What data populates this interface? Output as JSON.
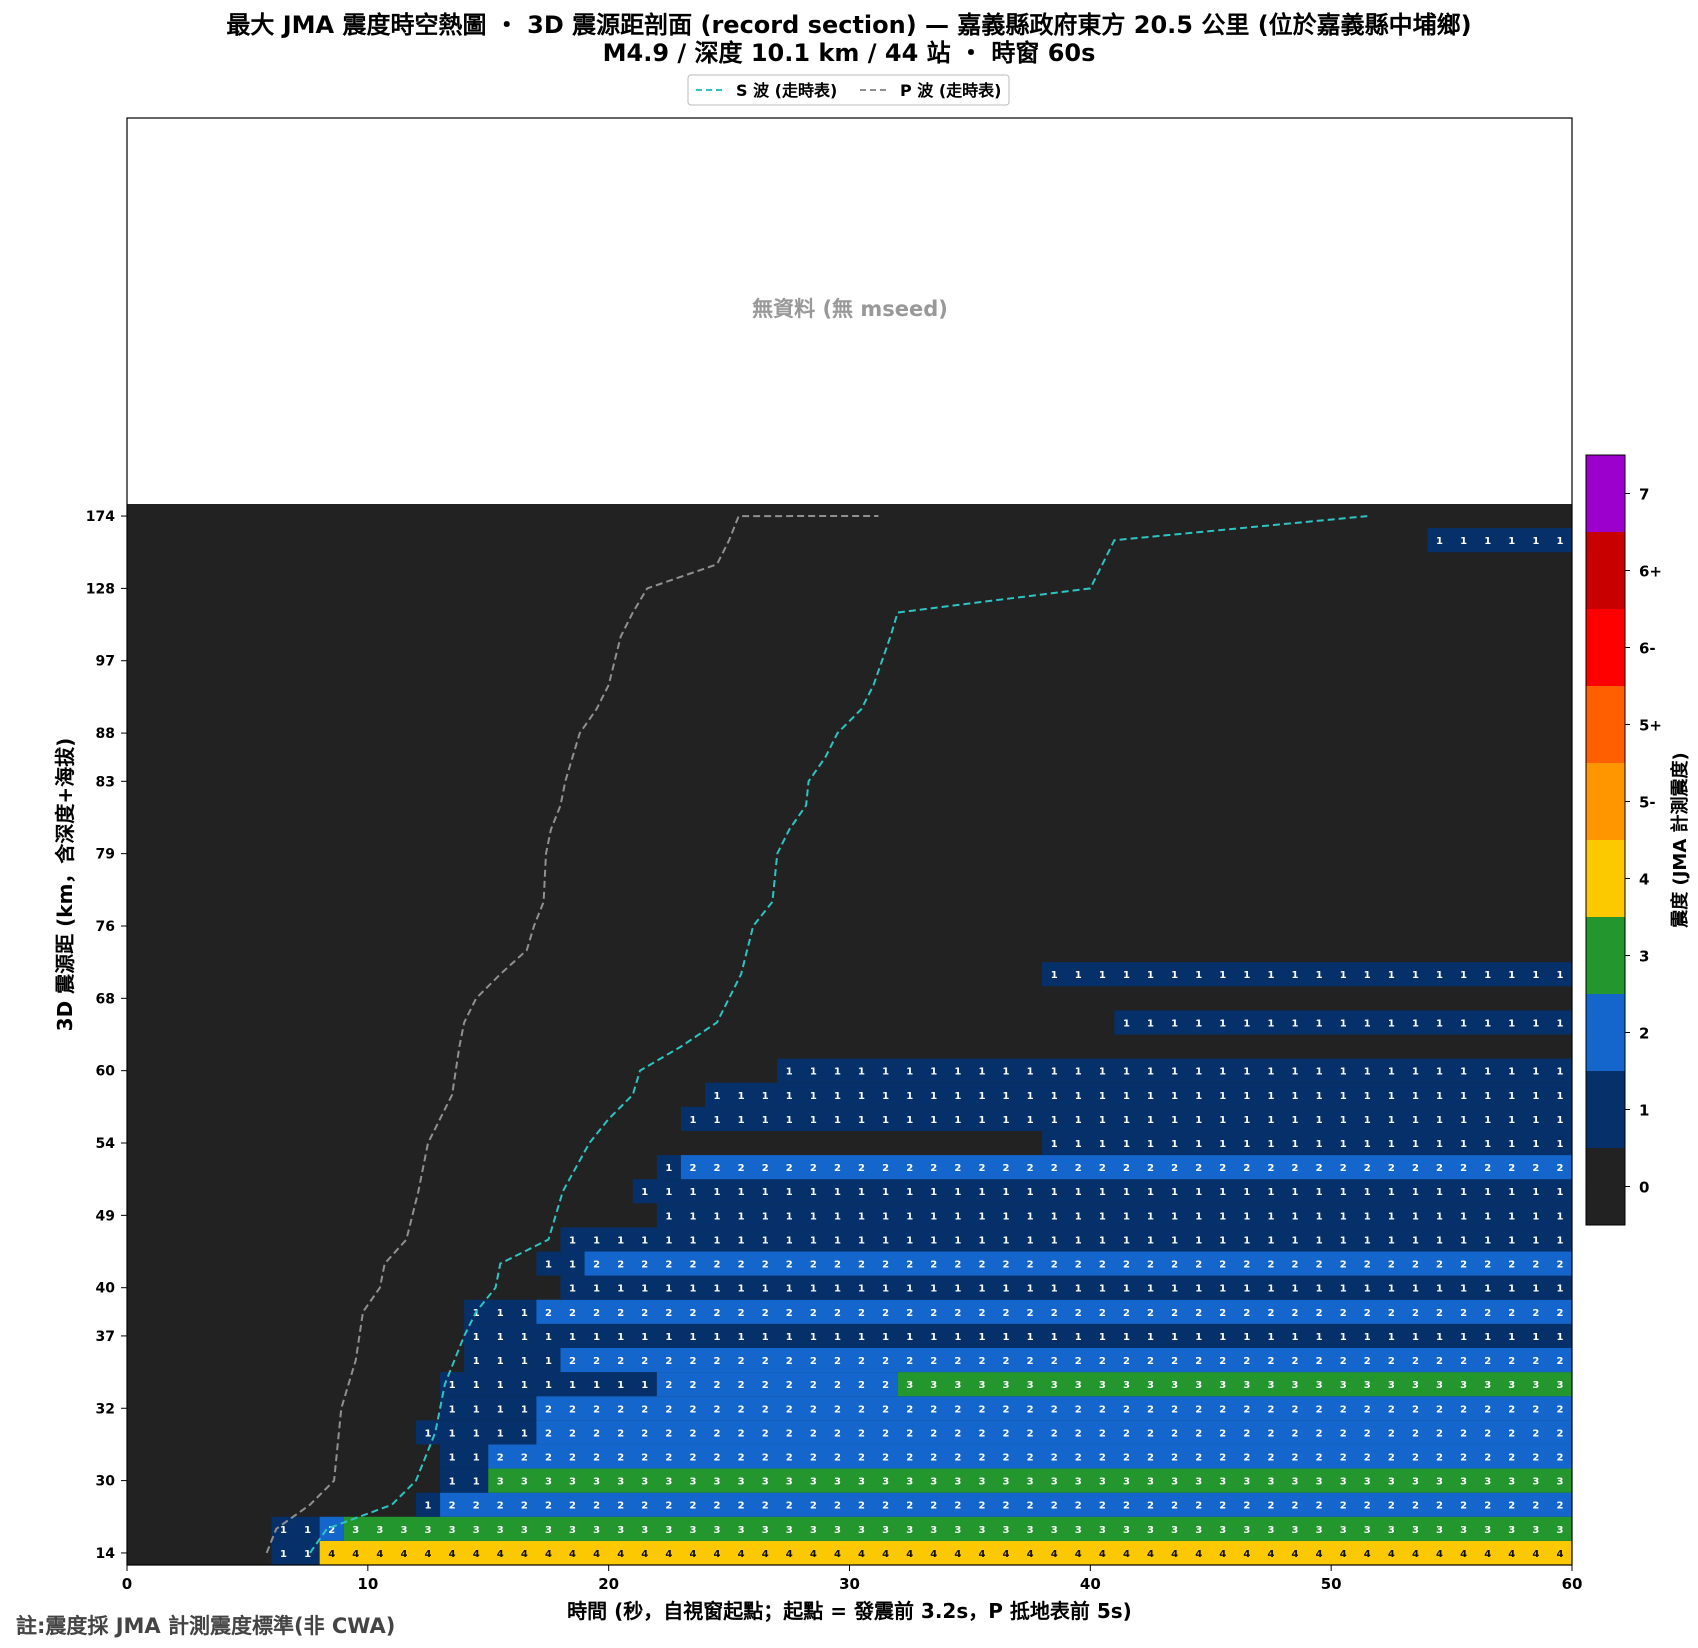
{
  "chart_data": {
    "type": "heatmap",
    "title": "最大 JMA 震度時空熱圖 ・ 3D 震源距剖面 (record section) — 嘉義縣政府東方  20.5  公里 (位於嘉義縣中埔鄉)",
    "subtitle": "M4.9 / 深度 10.1 km / 44 站 ・ 時窗 60s",
    "xlabel": "時間 (秒，自視窗起點；起點 = 發震前 3.2s，P 抵地表前 5s)",
    "ylabel": "3D 震源距 (km，含深度+海拔)",
    "xlim": [
      0,
      60
    ],
    "x_ticks": [
      0,
      10,
      20,
      30,
      40,
      50,
      60
    ],
    "no_data_label": "無資料 (無 mseed)",
    "legend": [
      {
        "label": "S 波 (走時表)",
        "color": "#2ec4c4"
      },
      {
        "label": "P 波 (走時表)",
        "color": "#909090"
      }
    ],
    "legend_position": "top-center",
    "colorbar": {
      "label": "震度 (JMA 計測震度)",
      "levels": [
        "0",
        "1",
        "2",
        "3",
        "4",
        "5-",
        "5+",
        "6-",
        "6+",
        "7"
      ],
      "colors": [
        "#222222",
        "#06306a",
        "#1466cc",
        "#24962e",
        "#fcc800",
        "#ff9600",
        "#ff5f00",
        "#ff0000",
        "#c80000",
        "#9b00cc"
      ]
    },
    "rows": [
      {
        "label": "14",
        "segs": [
          [
            6,
            8,
            1
          ],
          [
            8,
            60,
            4
          ]
        ]
      },
      {
        "label": "",
        "segs": [
          [
            6,
            8,
            1
          ],
          [
            8,
            9,
            2
          ],
          [
            9,
            60,
            3
          ]
        ]
      },
      {
        "label": "",
        "segs": [
          [
            12,
            13,
            1
          ],
          [
            13,
            60,
            2
          ]
        ]
      },
      {
        "label": "30",
        "segs": [
          [
            13,
            15,
            1
          ],
          [
            15,
            60,
            3
          ]
        ]
      },
      {
        "label": "",
        "segs": [
          [
            13,
            15,
            1
          ],
          [
            15,
            60,
            2
          ]
        ]
      },
      {
        "label": "",
        "segs": [
          [
            12,
            17,
            1
          ],
          [
            17,
            60,
            2
          ]
        ]
      },
      {
        "label": "32",
        "segs": [
          [
            13,
            17,
            1
          ],
          [
            17,
            60,
            2
          ]
        ]
      },
      {
        "label": "",
        "segs": [
          [
            13,
            22,
            1
          ],
          [
            22,
            32,
            2
          ],
          [
            32,
            60,
            3
          ]
        ]
      },
      {
        "label": "",
        "segs": [
          [
            14,
            18,
            1
          ],
          [
            18,
            60,
            2
          ]
        ]
      },
      {
        "label": "37",
        "segs": [
          [
            14,
            60,
            1
          ]
        ]
      },
      {
        "label": "",
        "segs": [
          [
            14,
            17,
            1
          ],
          [
            17,
            60,
            2
          ]
        ]
      },
      {
        "label": "40",
        "segs": [
          [
            18,
            60,
            1
          ]
        ]
      },
      {
        "label": "",
        "segs": [
          [
            17,
            19,
            1
          ],
          [
            19,
            60,
            2
          ]
        ]
      },
      {
        "label": "",
        "segs": [
          [
            18,
            60,
            1
          ]
        ]
      },
      {
        "label": "49",
        "segs": [
          [
            22,
            60,
            1
          ]
        ]
      },
      {
        "label": "",
        "segs": [
          [
            21,
            60,
            1
          ]
        ]
      },
      {
        "label": "",
        "segs": [
          [
            22,
            23,
            1
          ],
          [
            23,
            60,
            2
          ]
        ]
      },
      {
        "label": "54",
        "segs": [
          [
            38,
            60,
            1
          ]
        ]
      },
      {
        "label": "",
        "segs": [
          [
            23,
            60,
            1
          ]
        ]
      },
      {
        "label": "",
        "segs": [
          [
            24,
            60,
            1
          ]
        ]
      },
      {
        "label": "60",
        "segs": [
          [
            27,
            60,
            1
          ]
        ]
      },
      {
        "label": "",
        "segs": []
      },
      {
        "label": "",
        "segs": [
          [
            41,
            60,
            1
          ]
        ]
      },
      {
        "label": "68",
        "segs": []
      },
      {
        "label": "",
        "segs": [
          [
            38,
            60,
            1
          ]
        ]
      },
      {
        "label": "",
        "segs": []
      },
      {
        "label": "76",
        "segs": []
      },
      {
        "label": "",
        "segs": []
      },
      {
        "label": "",
        "segs": []
      },
      {
        "label": "79",
        "segs": []
      },
      {
        "label": "",
        "segs": []
      },
      {
        "label": "",
        "segs": []
      },
      {
        "label": "83",
        "segs": []
      },
      {
        "label": "",
        "segs": []
      },
      {
        "label": "88",
        "segs": []
      },
      {
        "label": "",
        "segs": []
      },
      {
        "label": "",
        "segs": []
      },
      {
        "label": "97",
        "segs": []
      },
      {
        "label": "",
        "segs": []
      },
      {
        "label": "",
        "segs": []
      },
      {
        "label": "128",
        "segs": []
      },
      {
        "label": "",
        "segs": []
      },
      {
        "label": "",
        "segs": [
          [
            54,
            60,
            1
          ]
        ]
      },
      {
        "label": "174",
        "segs": []
      }
    ],
    "s_wave": [
      [
        7.6,
        0
      ],
      [
        8.3,
        1
      ],
      [
        11,
        2
      ],
      [
        12,
        3
      ],
      [
        12.8,
        5
      ],
      [
        13.2,
        7
      ],
      [
        14,
        9
      ],
      [
        14.5,
        10
      ],
      [
        15.3,
        11
      ],
      [
        15.5,
        12
      ],
      [
        17.5,
        13
      ],
      [
        18.1,
        15
      ],
      [
        19.2,
        17
      ],
      [
        20,
        18
      ],
      [
        21,
        19
      ],
      [
        21.3,
        20
      ],
      [
        23,
        21
      ],
      [
        24.5,
        22
      ],
      [
        25.5,
        24
      ],
      [
        26,
        26
      ],
      [
        26.8,
        27
      ],
      [
        27,
        29
      ],
      [
        27.5,
        30
      ],
      [
        28.2,
        31
      ],
      [
        28.3,
        32
      ],
      [
        29,
        33
      ],
      [
        29.5,
        34
      ],
      [
        30.5,
        35
      ],
      [
        31,
        36
      ],
      [
        31.7,
        38
      ],
      [
        32,
        39
      ],
      [
        40,
        40
      ],
      [
        40.5,
        41
      ],
      [
        41,
        42
      ],
      [
        51.5,
        43
      ]
    ],
    "p_wave": [
      [
        5.8,
        0
      ],
      [
        6.2,
        1
      ],
      [
        7.6,
        2
      ],
      [
        8.6,
        3
      ],
      [
        8.9,
        6
      ],
      [
        9.5,
        8
      ],
      [
        9.8,
        10
      ],
      [
        10.5,
        11
      ],
      [
        10.7,
        12
      ],
      [
        11.6,
        13
      ],
      [
        12.1,
        15
      ],
      [
        12.5,
        17
      ],
      [
        13.5,
        19
      ],
      [
        13.8,
        21
      ],
      [
        14,
        22
      ],
      [
        14.5,
        23
      ],
      [
        15.5,
        24
      ],
      [
        16.6,
        25
      ],
      [
        16.9,
        26
      ],
      [
        17.3,
        27
      ],
      [
        17.4,
        29
      ],
      [
        17.6,
        30
      ],
      [
        18,
        31
      ],
      [
        18.2,
        32
      ],
      [
        18.5,
        33
      ],
      [
        18.8,
        34
      ],
      [
        19.5,
        35
      ],
      [
        20,
        36
      ],
      [
        20.5,
        38
      ],
      [
        21,
        39
      ],
      [
        21.6,
        40
      ],
      [
        24.5,
        41
      ],
      [
        25,
        42
      ],
      [
        25.4,
        43
      ],
      [
        31.2,
        44
      ]
    ]
  },
  "footer_note": "註:震度採 JMA 計測震度標準(非 CWA)"
}
